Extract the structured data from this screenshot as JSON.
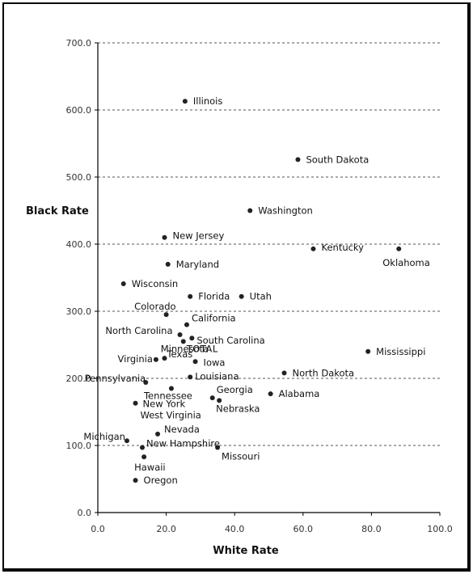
{
  "chart_data": {
    "type": "scatter",
    "title": "",
    "xlabel": "White Rate",
    "ylabel": "Black Rate",
    "xlim": [
      0,
      100
    ],
    "ylim": [
      0,
      700
    ],
    "x_ticks": [
      "0.0",
      "20.0",
      "40.0",
      "60.0",
      "80.0",
      "100.0"
    ],
    "y_ticks": [
      "0.0",
      "100.0",
      "200.0",
      "300.0",
      "400.0",
      "500.0",
      "600.0",
      "700.0"
    ],
    "grid": "horizontal dashed",
    "marker_color": "#222222",
    "points": [
      {
        "label": "Illinois",
        "x": 25.5,
        "y": 613
      },
      {
        "label": "South Dakota",
        "x": 58.5,
        "y": 526
      },
      {
        "label": "Washington",
        "x": 44.5,
        "y": 450
      },
      {
        "label": "New Jersey",
        "x": 19.5,
        "y": 410
      },
      {
        "label": "Kentucky",
        "x": 63.0,
        "y": 393
      },
      {
        "label": "Oklahoma",
        "x": 88.0,
        "y": 393
      },
      {
        "label": "Maryland",
        "x": 20.5,
        "y": 370
      },
      {
        "label": "Wisconsin",
        "x": 7.5,
        "y": 341
      },
      {
        "label": "Florida",
        "x": 27.0,
        "y": 322
      },
      {
        "label": "Utah",
        "x": 42.0,
        "y": 322
      },
      {
        "label": "Colorado",
        "x": 20.0,
        "y": 295
      },
      {
        "label": "California",
        "x": 26.0,
        "y": 280
      },
      {
        "label": "North Carolina",
        "x": 24.0,
        "y": 265
      },
      {
        "label": "South Carolina",
        "x": 27.5,
        "y": 260
      },
      {
        "label": "Minnesota",
        "x": 25.0,
        "y": 255
      },
      {
        "label": "TOTAL",
        "x": 25.0,
        "y": 255
      },
      {
        "label": "Mississippi",
        "x": 79.0,
        "y": 240
      },
      {
        "label": "Texas",
        "x": 19.5,
        "y": 230
      },
      {
        "label": "Virginia",
        "x": 17.0,
        "y": 228
      },
      {
        "label": "Iowa",
        "x": 28.5,
        "y": 225
      },
      {
        "label": "North Dakota",
        "x": 54.5,
        "y": 208
      },
      {
        "label": "Louisiana",
        "x": 27.0,
        "y": 202
      },
      {
        "label": "Pennsylvania",
        "x": 14.0,
        "y": 194
      },
      {
        "label": "Tennessee",
        "x": 21.5,
        "y": 185
      },
      {
        "label": "Alabama",
        "x": 50.5,
        "y": 177
      },
      {
        "label": "Georgia",
        "x": 33.5,
        "y": 171
      },
      {
        "label": "Nebraska",
        "x": 35.5,
        "y": 167
      },
      {
        "label": "New York",
        "x": 11.0,
        "y": 163
      },
      {
        "label": "West Virginia",
        "x": 11.0,
        "y": 163
      },
      {
        "label": "Nevada",
        "x": 17.5,
        "y": 117
      },
      {
        "label": "Michigan",
        "x": 8.5,
        "y": 107
      },
      {
        "label": "New Hampshire",
        "x": 13.0,
        "y": 97
      },
      {
        "label": "Missouri",
        "x": 35.0,
        "y": 97
      },
      {
        "label": "Hawaii",
        "x": 13.5,
        "y": 83
      },
      {
        "label": "Oregon",
        "x": 11.0,
        "y": 48
      }
    ]
  }
}
